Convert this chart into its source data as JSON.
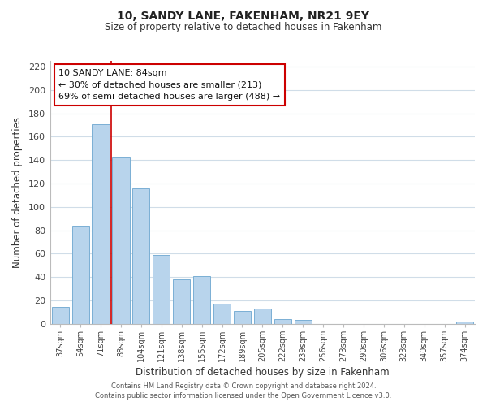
{
  "title": "10, SANDY LANE, FAKENHAM, NR21 9EY",
  "subtitle": "Size of property relative to detached houses in Fakenham",
  "xlabel": "Distribution of detached houses by size in Fakenham",
  "ylabel": "Number of detached properties",
  "footer_line1": "Contains HM Land Registry data © Crown copyright and database right 2024.",
  "footer_line2": "Contains public sector information licensed under the Open Government Licence v3.0.",
  "bar_labels": [
    "37sqm",
    "54sqm",
    "71sqm",
    "88sqm",
    "104sqm",
    "121sqm",
    "138sqm",
    "155sqm",
    "172sqm",
    "189sqm",
    "205sqm",
    "222sqm",
    "239sqm",
    "256sqm",
    "273sqm",
    "290sqm",
    "306sqm",
    "323sqm",
    "340sqm",
    "357sqm",
    "374sqm"
  ],
  "bar_values": [
    14,
    84,
    171,
    143,
    116,
    59,
    38,
    41,
    17,
    11,
    13,
    4,
    3,
    0,
    0,
    0,
    0,
    0,
    0,
    0,
    2
  ],
  "bar_color": "#b8d4ec",
  "bar_edge_color": "#7aafd4",
  "ylim": [
    0,
    225
  ],
  "yticks": [
    0,
    20,
    40,
    60,
    80,
    100,
    120,
    140,
    160,
    180,
    200,
    220
  ],
  "marker_color": "#cc0000",
  "annotation_title": "10 SANDY LANE: 84sqm",
  "annotation_line1": "← 30% of detached houses are smaller (213)",
  "annotation_line2": "69% of semi-detached houses are larger (488) →",
  "annotation_box_edge": "#cc0000",
  "background_color": "#ffffff",
  "grid_color": "#d0dde8"
}
